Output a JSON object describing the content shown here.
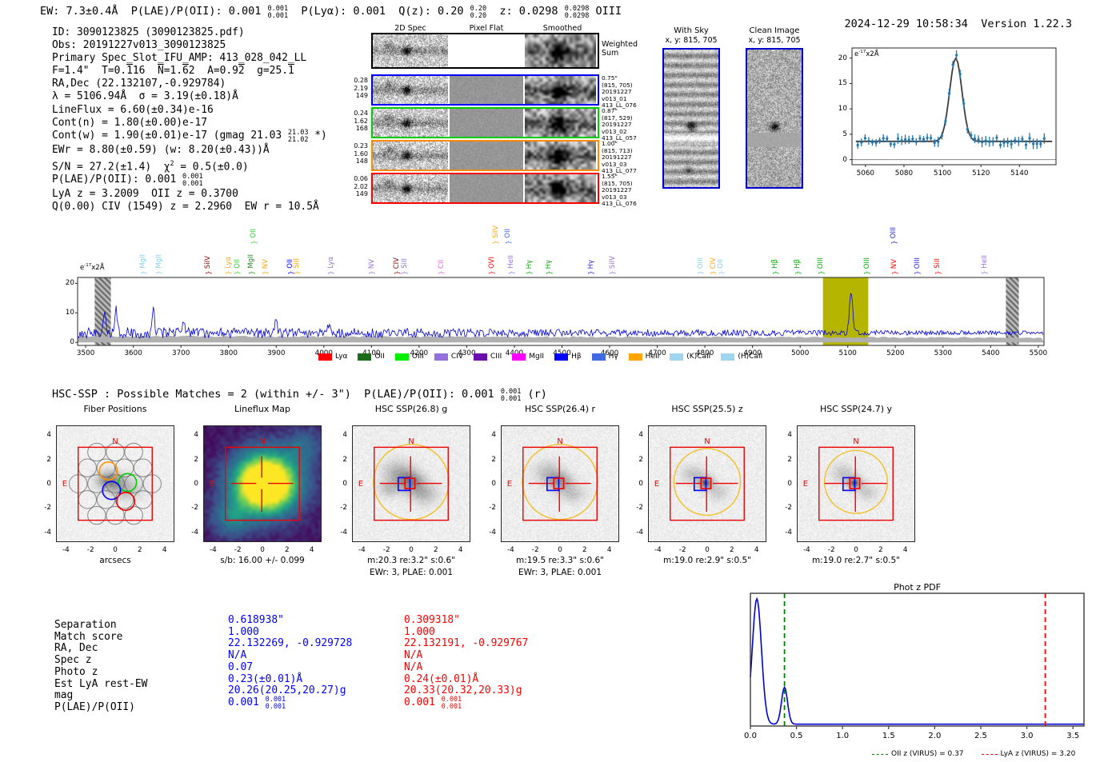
{
  "header": {
    "segments": [
      {
        "t": "EW: 7.3±0.4Å  P(LAE)/P(OII): 0.001 "
      },
      {
        "frac": [
          "0.001",
          "0.001"
        ]
      },
      {
        "t": "  P(Lyα): 0.001  Q(z): 0.20 "
      },
      {
        "frac": [
          "0.20",
          "0.20"
        ]
      },
      {
        "t": "  z: 0.0298 "
      },
      {
        "frac": [
          "0.0298",
          "0.0298"
        ]
      },
      {
        "t": " OIII"
      }
    ],
    "datetime": "2024-12-29 10:58:34",
    "version": "Version 1.22.3"
  },
  "info_lines": [
    [
      {
        "t": "ID: 3090123825 (3090123825.pdf)"
      }
    ],
    [
      {
        "t": "Obs: 20191227v013_3090123825"
      }
    ],
    [
      {
        "t": "Primary Spec_Slot_IFU_AMP: 413_028_042_LL"
      }
    ],
    [
      {
        "t": "F=1.4\"  T=0."
      },
      {
        "ov": "1"
      },
      {
        "t": "16  "
      },
      {
        "ov": "N"
      },
      {
        "t": "=1."
      },
      {
        "ov": "6"
      },
      {
        "t": "2  A=0.9"
      },
      {
        "ov": "2"
      },
      {
        "t": "  g=25."
      },
      {
        "ov": "1"
      }
    ],
    [
      {
        "t": "RA,Dec (22.132107,-0.929784)"
      }
    ],
    [
      {
        "t": "λ = 5106.94Å  σ = 3.19(±0.18)Å"
      }
    ],
    [
      {
        "t": "LineFlux = 6.60(±0.34)e-16"
      }
    ],
    [
      {
        "t": "Cont(n) = 1.80(±0.00)e-17"
      }
    ],
    [
      {
        "t": "Cont(w) = 1.90(±0.01)e-17 (gmag 21.03 "
      },
      {
        "frac": [
          "21.03",
          "21.02"
        ]
      },
      {
        "t": " *)"
      }
    ],
    [
      {
        "t": "EWr = 8.80(±0.59) (w: 8.20(±0.43))Å"
      }
    ],
    [
      {
        "t": "S/N = 27.2(±1.4)  χ"
      },
      {
        "sup": "2"
      },
      {
        "t": " = 0.5(±0.0)"
      }
    ],
    [
      {
        "t": "P(LAE)/P(OII): 0.001 "
      },
      {
        "frac": [
          "0.001",
          "0.001"
        ]
      }
    ],
    [
      {
        "t": "LyA z = 3.2009  OII z = 0.3700"
      }
    ],
    [
      {
        "t": "Q(0.00) CIV (1549) z = 2.2960  EW r = 10.5Å"
      }
    ]
  ],
  "spec2d": {
    "col_headers": [
      "2D Spec",
      "Pixel Flat",
      "Smoothed"
    ],
    "weighted_label": [
      "Weighted",
      "Sum"
    ],
    "rows": [
      {
        "border": "#000000",
        "left": [],
        "right": []
      },
      {
        "border": "#0000ff",
        "left": [
          "0.28",
          "2.19",
          "149"
        ],
        "right": [
          "0.75\"",
          "(815, 705)",
          "20191227",
          "v013_01",
          "413_LL_076"
        ]
      },
      {
        "border": "#00cc00",
        "left": [
          "0.24",
          "1.62",
          "168"
        ],
        "right": [
          "0.87\"",
          "(817, 529)",
          "20191227",
          "v013_02",
          "413_LL_057"
        ]
      },
      {
        "border": "#ff8c00",
        "left": [
          "0.23",
          "1.60",
          "148"
        ],
        "right": [
          "1.00\"",
          "(815, 713)",
          "20191227",
          "v013_03",
          "413_LL_077"
        ]
      },
      {
        "border": "#ff0000",
        "left": [
          "0.06",
          "2.02",
          "149"
        ],
        "right": [
          "1.55\"",
          "(815, 705)",
          "20191227",
          "v013_03",
          "413_LL_076"
        ]
      }
    ]
  },
  "sky_panels": [
    {
      "title": "With Sky",
      "subtitle": "x, y: 815, 705"
    },
    {
      "title": "Clean Image",
      "subtitle": "x, y: 815, 705"
    }
  ],
  "hsc_line": [
    {
      "t": "HSC-SSP : Possible Matches = 2 (within +/- 3\")  P(LAE)/P(OII): 0.001 "
    },
    {
      "frac": [
        "0.001",
        "0.001"
      ]
    },
    {
      "t": " (r)"
    }
  ],
  "cutout_panels": [
    {
      "title": "Fiber Positions",
      "xlabel": "arcsecs",
      "captions": []
    },
    {
      "title": "Lineflux Map",
      "captions": [
        "s/b: 16.00 +/- 0.099"
      ]
    },
    {
      "title": "HSC SSP(26.8) g",
      "captions": [
        "m:20.3 re:3.2\" s:0.6\"",
        "EWr: 3, PLAE: 0.001"
      ]
    },
    {
      "title": "HSC SSP(26.4) r",
      "captions": [
        "m:19.5 re:3.3\" s:0.6\"",
        "EWr: 3, PLAE: 0.001"
      ]
    },
    {
      "title": "HSC SSP(25.5) z",
      "captions": [
        "m:19.0 re:2.9\" s:0.5\""
      ]
    },
    {
      "title": "HSC SSP(24.7) y",
      "captions": [
        "m:19.0 re:2.7\" s:0.5\""
      ]
    }
  ],
  "compass": {
    "north": "N",
    "east": "E",
    "color": "#ee0000"
  },
  "axis_ticks": [
    -4,
    -2,
    0,
    2,
    4
  ],
  "match_table": {
    "blue_color": "#0000ff",
    "red_color": "#ff0000",
    "rows": [
      {
        "label": "Separation",
        "blue": [
          {
            "t": "0.618938\""
          }
        ],
        "red": [
          {
            "t": "0.309318\""
          }
        ]
      },
      {
        "label": "Match score",
        "blue": [
          {
            "t": "1.000"
          }
        ],
        "red": [
          {
            "t": "1.000"
          }
        ]
      },
      {
        "label": "RA, Dec",
        "blue": [
          {
            "t": "22.132269, -0.929728"
          }
        ],
        "red": [
          {
            "t": "22.132191, -0.929767"
          }
        ]
      },
      {
        "label": "Spec z",
        "blue": [
          {
            "t": "N/A"
          }
        ],
        "red": [
          {
            "t": "N/A"
          }
        ]
      },
      {
        "label": "Photo z",
        "blue": [
          {
            "t": "0.07"
          }
        ],
        "red": [
          {
            "t": "N/A"
          }
        ]
      },
      {
        "label": "Est LyA rest-EW",
        "blue": [
          {
            "t": "0.23(±0.01)Å"
          }
        ],
        "red": [
          {
            "t": "0.24(±0.01)Å"
          }
        ]
      },
      {
        "label": "mag",
        "blue": [
          {
            "t": "20.26(20.25,20.27)g"
          }
        ],
        "red": [
          {
            "t": "20.33(20.32,20.33)g"
          }
        ]
      },
      {
        "label": "P(LAE)/P(OII)",
        "blue": [
          {
            "t": "0.001 "
          },
          {
            "frac": [
              "0.001",
              "0.001"
            ]
          }
        ],
        "red": [
          {
            "t": "0.001 "
          },
          {
            "frac": [
              "0.001",
              "0.001"
            ]
          }
        ]
      }
    ]
  },
  "chart_data": [
    {
      "type": "scatter",
      "name": "emission-line-fit",
      "unit_segments": [
        {
          "t": "e"
        },
        {
          "sup": "-17"
        },
        {
          "t": "x2Å"
        }
      ],
      "xticks": [
        5060,
        5080,
        5100,
        5120,
        5140
      ],
      "yticks": [
        0,
        5,
        10,
        15,
        20
      ],
      "xrange": [
        5053,
        5159
      ],
      "yrange": [
        -1,
        22
      ],
      "baseline": 3.6,
      "peak": {
        "center": 5106.94,
        "sigma": 3.2,
        "amplitude": 16.4
      },
      "point_color": "#1f77b4",
      "fit_color": "#3d3d3d"
    },
    {
      "type": "line",
      "name": "full-spectrum",
      "unit_segments": [
        {
          "t": "e"
        },
        {
          "sup": "-17"
        },
        {
          "t": "x2Å"
        }
      ],
      "xticks": [
        3500,
        3600,
        3700,
        3800,
        3900,
        4000,
        4100,
        4200,
        4300,
        4400,
        4500,
        4600,
        4700,
        4800,
        4900,
        5000,
        5100,
        5200,
        5300,
        5400,
        5500
      ],
      "yticks": [
        0,
        10,
        20
      ],
      "xrange": [
        3483,
        5512
      ],
      "yrange": [
        -1,
        22
      ],
      "baseline": 3.25,
      "peak": {
        "center": 5106.94,
        "sigma": 3.4,
        "amplitude": 14.3
      },
      "noise_spikes": [
        [
          3540,
          6
        ],
        [
          3563,
          8.5
        ],
        [
          3642,
          9.5
        ],
        [
          3706,
          5
        ],
        [
          3900,
          4
        ],
        [
          4010,
          3
        ]
      ],
      "hatch_bands": [
        [
          3519,
          3553
        ],
        [
          5432,
          5459
        ]
      ],
      "highlight_band": [
        5048,
        5143
      ],
      "highlight_color": "#b5b500",
      "line_color": "#0000dd",
      "markers": [
        {
          "label": "MgII",
          "color": "#87ceeb",
          "wl": 3621,
          "row": 0
        },
        {
          "label": "MgII",
          "color": "#87ceeb",
          "wl": 3654,
          "row": 0
        },
        {
          "label": "SiIV",
          "color": "#8b0000",
          "wl": 3757,
          "row": 0
        },
        {
          "label": "Lyα",
          "color": "#ffa500",
          "wl": 3800,
          "row": 0
        },
        {
          "label": "OII",
          "color": "#33cc33",
          "wl": 3819,
          "row": 0
        },
        {
          "label": "MgII",
          "color": "#228b22",
          "wl": 3848,
          "row": 0
        },
        {
          "label": "OII",
          "color": "#33cc33",
          "wl": 3853,
          "row": 1
        },
        {
          "label": "NV",
          "color": "#ffa500",
          "wl": 3877,
          "row": 0
        },
        {
          "label": "OII",
          "color": "#0000ff",
          "wl": 3930,
          "row": 0
        },
        {
          "label": "SiII",
          "color": "#ffa500",
          "wl": 3944,
          "row": 0
        },
        {
          "label": "Lyα",
          "color": "#9370db",
          "wl": 4015,
          "row": 0
        },
        {
          "label": "NV",
          "color": "#9370db",
          "wl": 4101,
          "row": 0
        },
        {
          "label": "CIV",
          "color": "#8b0000",
          "wl": 4154,
          "row": 0
        },
        {
          "label": "SiII",
          "color": "#9370db",
          "wl": 4170,
          "row": 0
        },
        {
          "label": "CII",
          "color": "#e060e0",
          "wl": 4247,
          "row": 0
        },
        {
          "label": "OVI",
          "color": "#ff0000",
          "wl": 4353,
          "row": 0
        },
        {
          "label": "SiIV",
          "color": "#ffa500",
          "wl": 4361,
          "row": 1
        },
        {
          "label": "OII",
          "color": "#4169e1",
          "wl": 4387,
          "row": 1
        },
        {
          "label": "HeII",
          "color": "#9370db",
          "wl": 4394,
          "row": 0
        },
        {
          "label": "Hγ",
          "color": "#00aa00",
          "wl": 4432,
          "row": 0
        },
        {
          "label": "Hγ",
          "color": "#00aa00",
          "wl": 4473,
          "row": 0
        },
        {
          "label": "Hγ",
          "color": "#2222dd",
          "wl": 4561,
          "row": 0
        },
        {
          "label": "SiIV",
          "color": "#9370db",
          "wl": 4606,
          "row": 0
        },
        {
          "label": "OIII",
          "color": "#87ceeb",
          "wl": 4791,
          "row": 0
        },
        {
          "label": "CIV",
          "color": "#ffa500",
          "wl": 4818,
          "row": 0
        },
        {
          "label": "OII",
          "color": "#87ceeb",
          "wl": 4834,
          "row": 0
        },
        {
          "label": "Hβ",
          "color": "#00aa00",
          "wl": 4948,
          "row": 0
        },
        {
          "label": "Hβ",
          "color": "#00aa00",
          "wl": 4995,
          "row": 0
        },
        {
          "label": "OIII",
          "color": "#00aa00",
          "wl": 5044,
          "row": 0
        },
        {
          "label": "OIII",
          "color": "#00aa00",
          "wl": 5140,
          "row": 0
        },
        {
          "label": "OIII",
          "color": "#2222dd",
          "wl": 5197,
          "row": 1
        },
        {
          "label": "NV",
          "color": "#ff0000",
          "wl": 5198,
          "row": 0
        },
        {
          "label": "OIII",
          "color": "#2222dd",
          "wl": 5246,
          "row": 0
        },
        {
          "label": "SiII",
          "color": "#ff0000",
          "wl": 5289,
          "row": 0
        },
        {
          "label": "HeII",
          "color": "#9370db",
          "wl": 5387,
          "row": 0
        }
      ],
      "legend": [
        {
          "label": "Lyα",
          "color": "#ff0000"
        },
        {
          "label": "OII",
          "color": "#1a6b1a"
        },
        {
          "label": "OIII",
          "color": "#00ee00"
        },
        {
          "label": "CIV",
          "color": "#9370db"
        },
        {
          "label": "CIII",
          "color": "#6a0dad"
        },
        {
          "label": "MgII",
          "color": "#ff00ff"
        },
        {
          "label": "Hβ",
          "color": "#0000ff"
        },
        {
          "label": "Hγ",
          "color": "#4169e1"
        },
        {
          "label": "HeII",
          "color": "#ffa500"
        },
        {
          "label": "(K)CaII",
          "color": "#9fd6ef"
        },
        {
          "label": "(H)CaII",
          "color": "#9fd6ef"
        }
      ]
    },
    {
      "type": "line",
      "name": "phot-z-pdf",
      "title": "Phot z PDF",
      "xticks": [
        0.0,
        0.5,
        1.0,
        1.5,
        2.0,
        2.5,
        3.0,
        3.5
      ],
      "xrange": [
        0,
        3.62
      ],
      "baseline": 0.015,
      "peaks": [
        {
          "center": 0.07,
          "sigma": 0.05,
          "amplitude": 1.02
        },
        {
          "center": 0.37,
          "sigma": 0.033,
          "amplitude": 0.3
        }
      ],
      "line_color": "#0000dd",
      "vlines": [
        {
          "x": 0.37,
          "color": "#008000",
          "label": "OII z (VIRUS) = 0.37"
        },
        {
          "x": 3.2,
          "color": "#ff0000",
          "label": "LyA z (VIRUS) = 3.20"
        }
      ]
    }
  ]
}
